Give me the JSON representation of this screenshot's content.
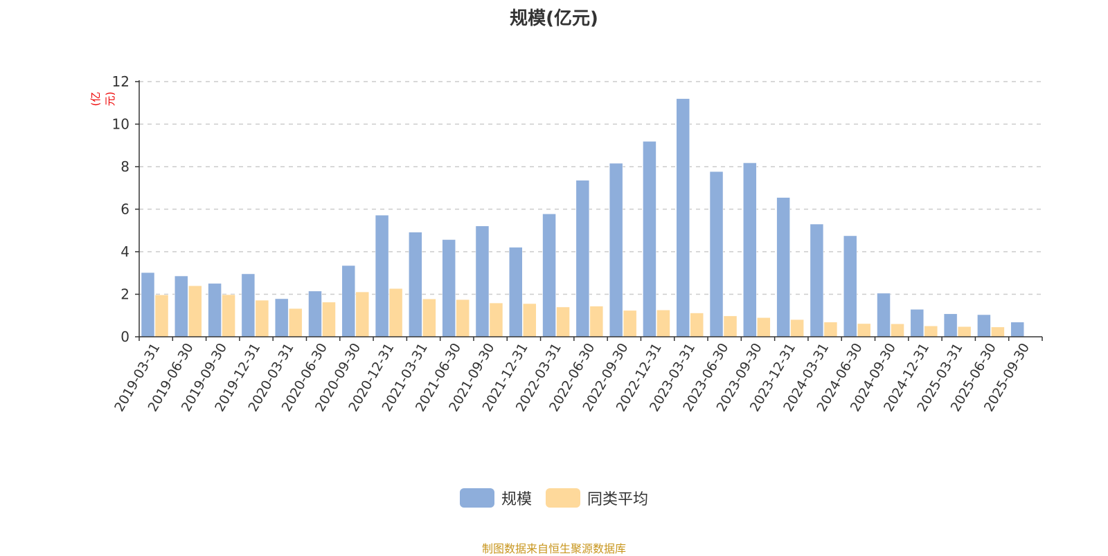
{
  "chart_data": {
    "type": "bar",
    "title": "规模(亿元)",
    "ylabel": "(亿元)",
    "xlabel": "",
    "ylim": [
      0,
      12
    ],
    "yticks": [
      0,
      2,
      4,
      6,
      8,
      10,
      12
    ],
    "grid": true,
    "legend_position": "bottom",
    "categories": [
      "2019-03-31",
      "2019-06-30",
      "2019-09-30",
      "2019-12-31",
      "2020-03-31",
      "2020-06-30",
      "2020-09-30",
      "2020-12-31",
      "2021-03-31",
      "2021-06-30",
      "2021-09-30",
      "2021-12-31",
      "2022-03-31",
      "2022-06-30",
      "2022-09-30",
      "2022-12-31",
      "2023-03-31",
      "2023-06-30",
      "2023-09-30",
      "2023-12-31",
      "2024-03-31",
      "2024-06-30",
      "2024-09-30",
      "2024-12-31",
      "2025-03-31",
      "2025-06-30",
      "2025-09-30"
    ],
    "series": [
      {
        "name": "规模",
        "color": "#8eaedb",
        "values": [
          3.02,
          2.86,
          2.51,
          2.96,
          1.79,
          2.15,
          3.35,
          5.72,
          4.92,
          4.57,
          5.21,
          4.21,
          5.78,
          7.36,
          8.16,
          9.19,
          11.2,
          7.77,
          8.18,
          6.55,
          5.3,
          4.75,
          2.05,
          1.29,
          1.08,
          1.04,
          0.69
        ]
      },
      {
        "name": "同类平均",
        "color": "#fed99b",
        "values": [
          1.97,
          2.4,
          1.98,
          1.72,
          1.33,
          1.63,
          2.11,
          2.27,
          1.78,
          1.75,
          1.59,
          1.56,
          1.4,
          1.44,
          1.24,
          1.26,
          1.12,
          0.98,
          0.9,
          0.81,
          0.69,
          0.62,
          0.61,
          0.51,
          0.48,
          0.46,
          null
        ]
      }
    ]
  },
  "source": "制图数据来自恒生聚源数据库"
}
